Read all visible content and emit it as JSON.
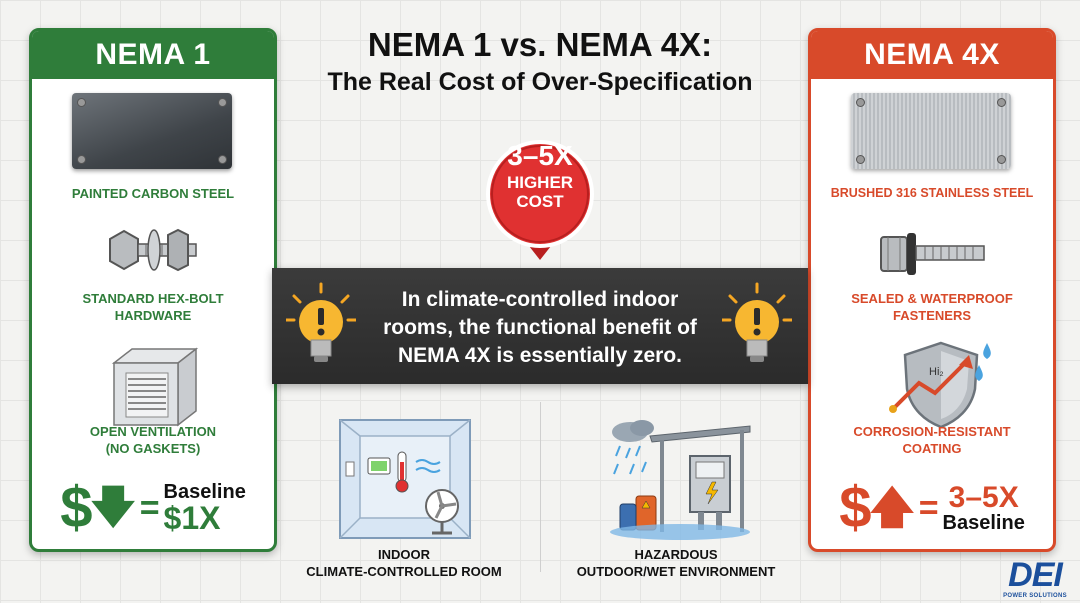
{
  "title": "NEMA 1 vs. NEMA 4X:",
  "subtitle": "The Real Cost of Over-Specification",
  "badge": {
    "line1": "3–5X",
    "line2": "HIGHER",
    "line3": "COST",
    "color": "#d62828"
  },
  "callout": "In climate-controlled indoor rooms, the functional benefit of NEMA 4X is essentially zero.",
  "left_panel": {
    "header": "NEMA 1",
    "color": "#2f7d3a",
    "material": "PAINTED CARBON STEEL",
    "hardware_1": "STANDARD HEX-BOLT",
    "hardware_2": "HARDWARE",
    "ventilation_1": "OPEN VENTILATION",
    "ventilation_2": "(NO GASKETS)",
    "price_symbol": "$",
    "price_label": "Baseline",
    "price_value": "$1X"
  },
  "right_panel": {
    "header": "NEMA 4X",
    "color": "#d84a2a",
    "material": "BRUSHED 316 STAINLESS STEEL",
    "fasteners_1": "SEALED & WATERPROOF",
    "fasteners_2": "FASTENERS",
    "coating_1": "CORROSION-RESISTANT",
    "coating_2": "COATING",
    "shield_text": "Hi₂",
    "price_symbol": "$",
    "price_value": "3–5X",
    "price_label": "Baseline"
  },
  "scenes": {
    "indoor_1": "INDOOR",
    "indoor_2": "CLIMATE-CONTROLLED ROOM",
    "outdoor_1": "HAZARDOUS",
    "outdoor_2": "OUTDOOR/WET ENVIRONMENT"
  },
  "logo": {
    "main": "DEI",
    "sub": "POWER SOLUTIONS"
  }
}
